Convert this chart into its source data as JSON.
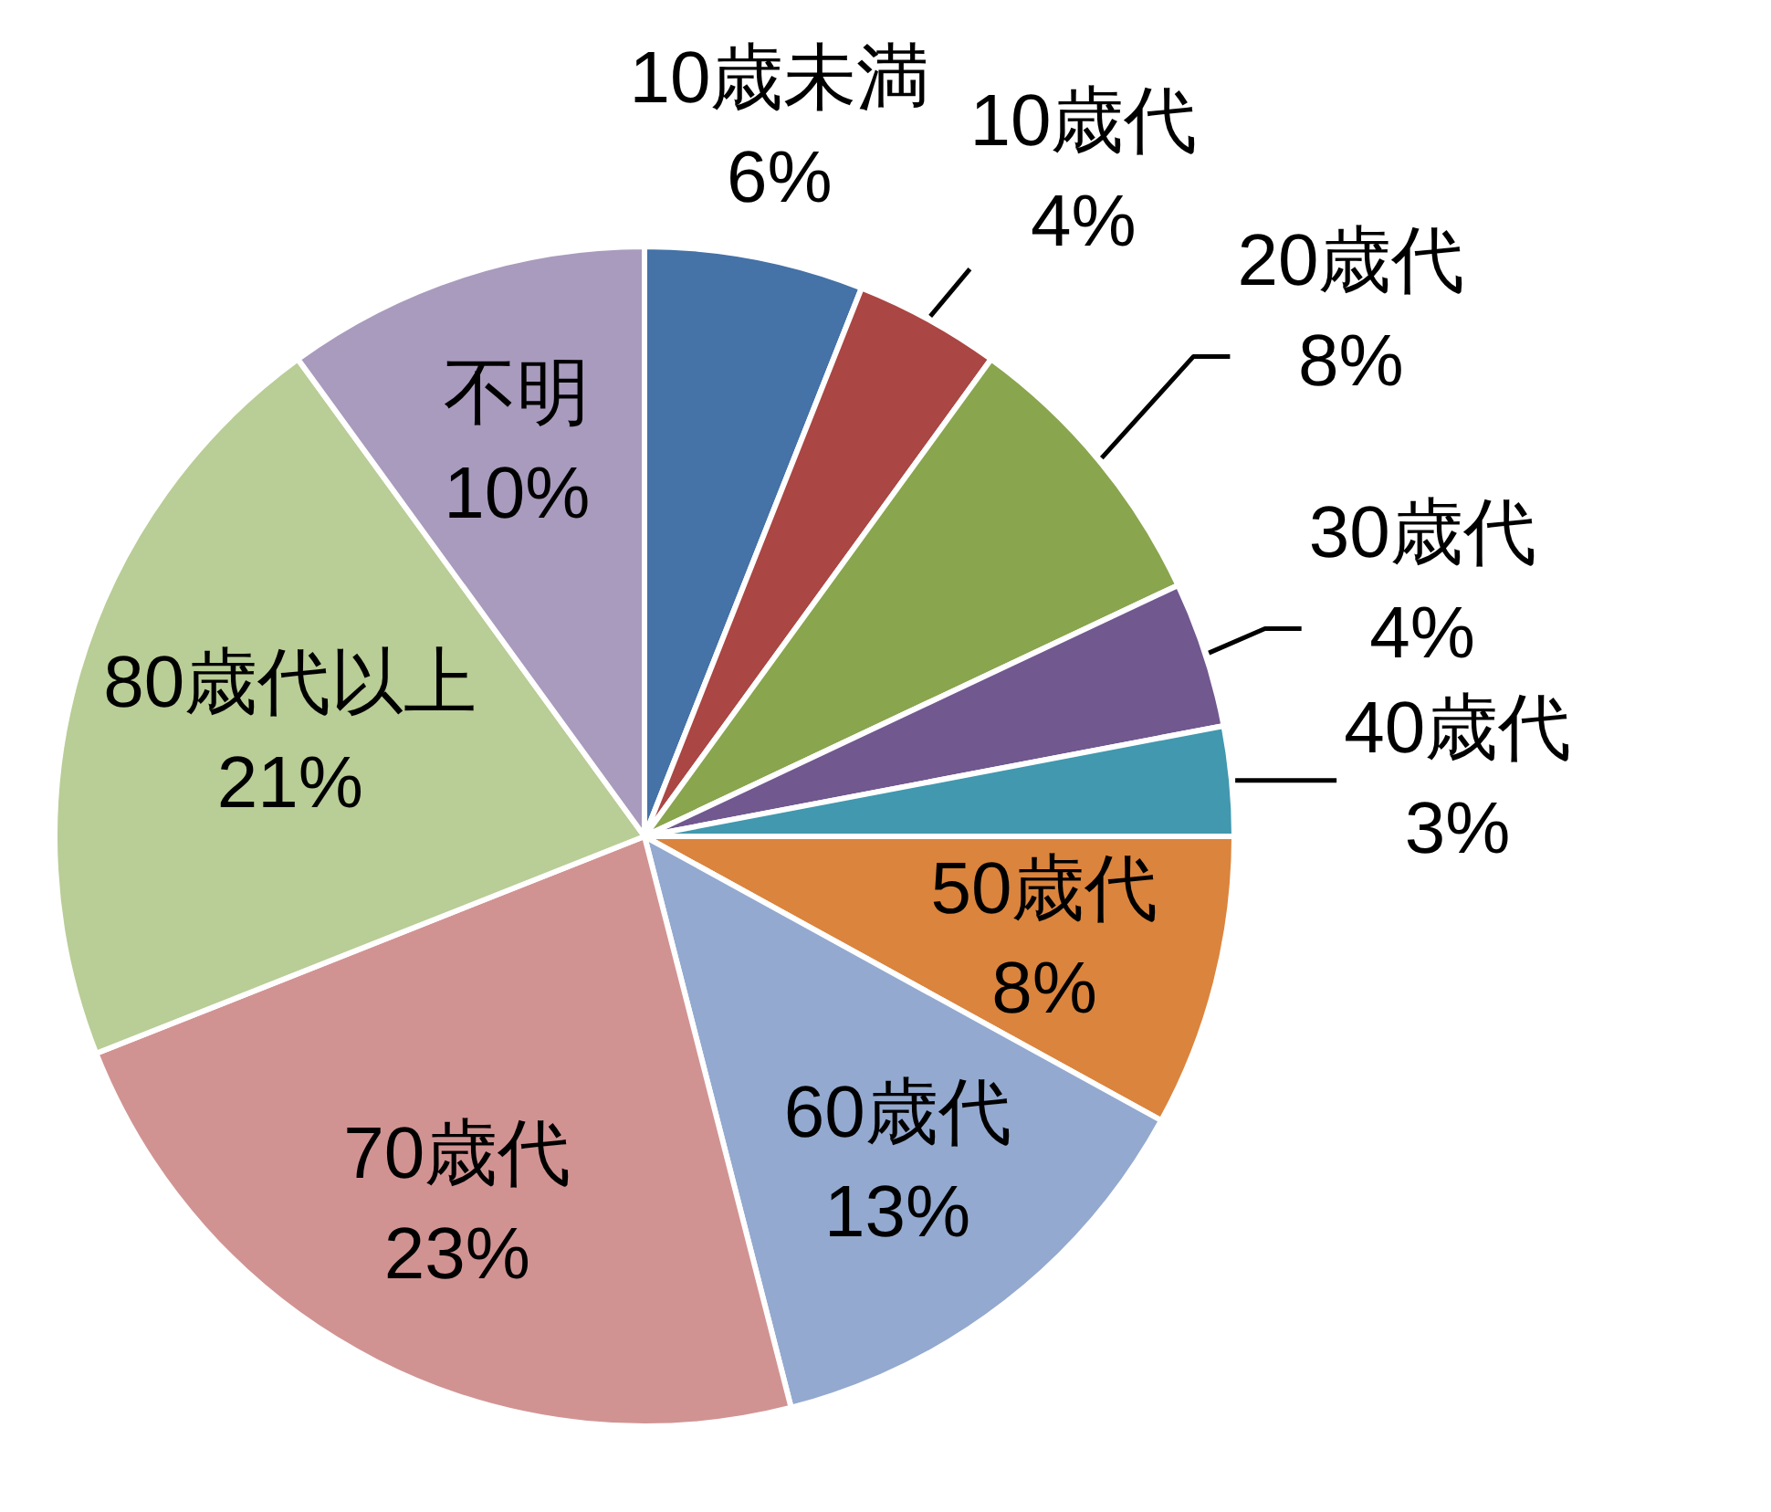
{
  "chart_data": {
    "type": "pie",
    "categories": [
      "10歳未満",
      "10歳代",
      "20歳代",
      "30歳代",
      "40歳代",
      "50歳代",
      "60歳代",
      "70歳代",
      "80歳代以上",
      "不明"
    ],
    "values": [
      6,
      4,
      8,
      4,
      3,
      8,
      13,
      23,
      21,
      10
    ],
    "value_labels": [
      "6%",
      "4%",
      "8%",
      "4%",
      "3%",
      "8%",
      "13%",
      "23%",
      "21%",
      "10%"
    ],
    "colors": [
      "#4572a7",
      "#aa4643",
      "#89a54e",
      "#71588f",
      "#4198af",
      "#db843d",
      "#93a9cf",
      "#d19392",
      "#b9cd96",
      "#a99bbd"
    ]
  }
}
